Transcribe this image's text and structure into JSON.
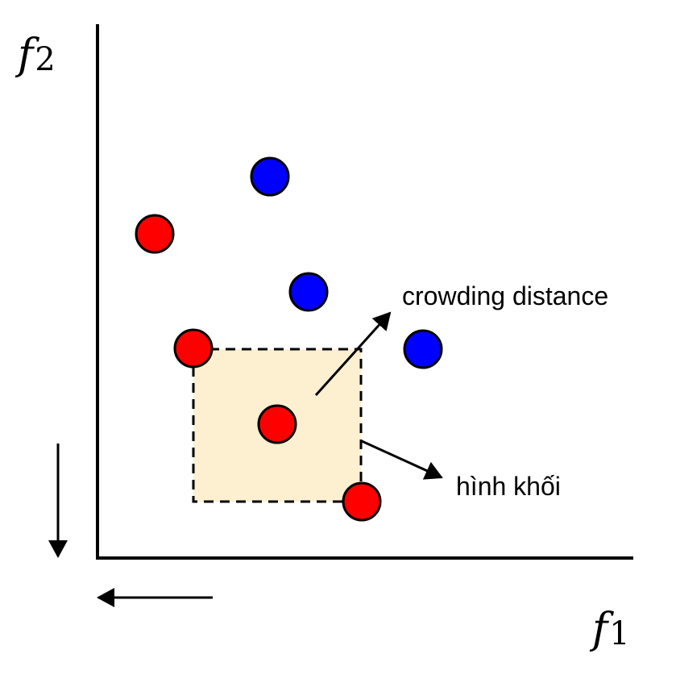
{
  "axes": {
    "y_title": "f",
    "y_subscript": "2",
    "x_title": "f",
    "x_subscript": "1"
  },
  "annotations": {
    "crowding": "crowding distance",
    "cuboid": "hình khối"
  },
  "colors": {
    "red_point": "#ff0000",
    "blue_point": "#0000ff",
    "cuboid_fill": "#fdf0d0",
    "stroke": "#000000"
  },
  "points": [
    {
      "name": "red-point",
      "color": "red"
    },
    {
      "name": "red-point",
      "color": "red"
    },
    {
      "name": "red-point",
      "color": "red"
    },
    {
      "name": "red-point",
      "color": "red"
    },
    {
      "name": "blue-point",
      "color": "blue"
    },
    {
      "name": "blue-point",
      "color": "blue"
    },
    {
      "name": "blue-point",
      "color": "blue"
    }
  ]
}
